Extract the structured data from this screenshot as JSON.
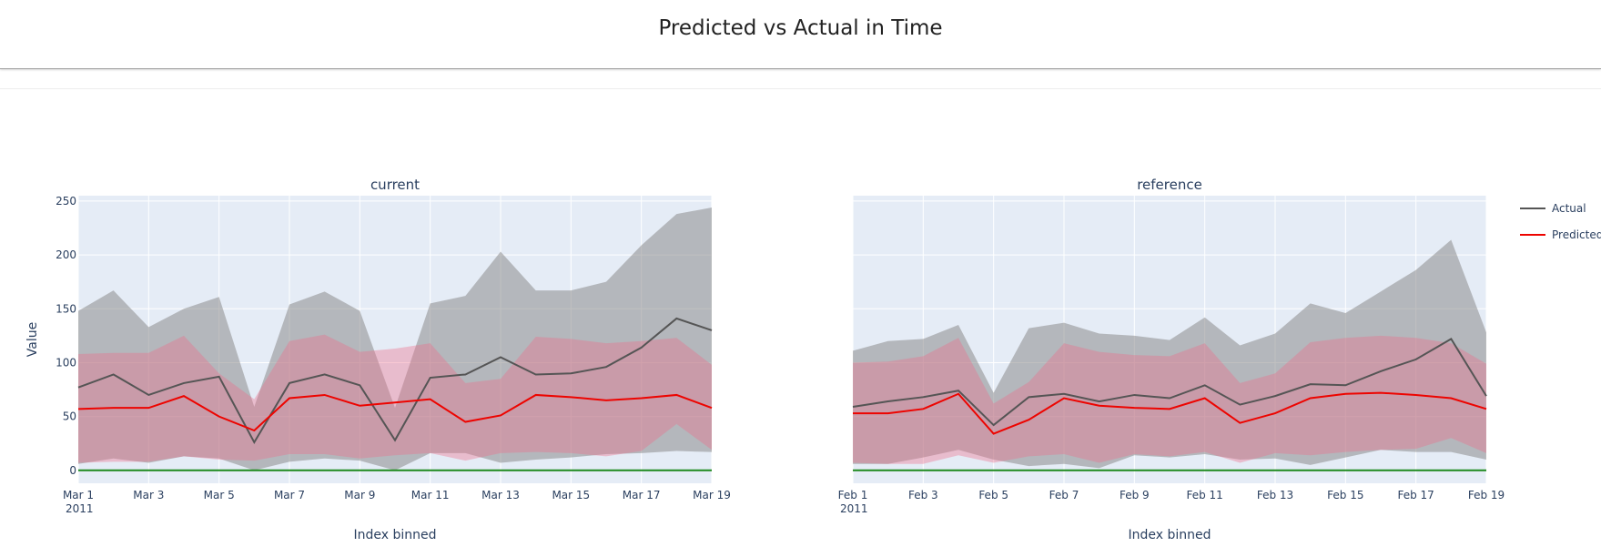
{
  "page": {
    "title": "Predicted vs Actual in Time"
  },
  "chart_data": {
    "type": "line",
    "ylabel": "Value",
    "ylim": [
      -12,
      255
    ],
    "yticks": [
      0,
      50,
      100,
      150,
      200,
      250
    ],
    "grid": true,
    "legend": {
      "placement": "top-right",
      "items": [
        {
          "name": "Actual",
          "color": "#555555"
        },
        {
          "name": "Predicted",
          "color": "#ed0400"
        }
      ]
    },
    "colors": {
      "actual": "#555555",
      "predicted": "#ed0400",
      "zero_line": "#1e8a1e",
      "actual_band": "rgba(140,140,140,0.55)",
      "predicted_band": "rgba(237,110,140,0.38)",
      "plot_bg": "#e5ecf6"
    },
    "panels": [
      {
        "subtitle": "current",
        "xlabel": "Index binned",
        "xlim": [
          1,
          19
        ],
        "xticks": [
          {
            "x": 1,
            "label": "Mar 1",
            "sub": "2011"
          },
          {
            "x": 3,
            "label": "Mar 3"
          },
          {
            "x": 5,
            "label": "Mar 5"
          },
          {
            "x": 7,
            "label": "Mar 7"
          },
          {
            "x": 9,
            "label": "Mar 9"
          },
          {
            "x": 11,
            "label": "Mar 11"
          },
          {
            "x": 13,
            "label": "Mar 13"
          },
          {
            "x": 15,
            "label": "Mar 15"
          },
          {
            "x": 17,
            "label": "Mar 17"
          },
          {
            "x": 19,
            "label": "Mar 19"
          }
        ],
        "x": [
          1,
          2,
          3,
          4,
          5,
          6,
          7,
          8,
          9,
          10,
          11,
          12,
          13,
          14,
          15,
          16,
          17,
          18,
          19
        ],
        "series": [
          {
            "name": "Actual",
            "values": [
              77,
              89,
              70,
              81,
              87,
              26,
              81,
              89,
              79,
              28,
              86,
              89,
              105,
              89,
              90,
              96,
              114,
              141,
              130
            ]
          },
          {
            "name": "Predicted",
            "values": [
              57,
              58,
              58,
              69,
              50,
              37,
              67,
              70,
              60,
              63,
              66,
              45,
              51,
              70,
              68,
              65,
              67,
              70,
              58
            ]
          }
        ],
        "actual_band": {
          "upper": [
            148,
            167,
            133,
            150,
            161,
            59,
            154,
            166,
            148,
            58,
            155,
            162,
            203,
            167,
            167,
            175,
            209,
            238,
            244
          ],
          "lower": [
            6,
            11,
            7,
            13,
            11,
            0,
            8,
            11,
            9,
            0,
            16,
            16,
            7,
            10,
            12,
            15,
            16,
            18,
            17
          ]
        },
        "predicted_band": {
          "upper": [
            108,
            109,
            109,
            125,
            90,
            66,
            120,
            126,
            110,
            113,
            118,
            81,
            85,
            124,
            122,
            118,
            120,
            123,
            98
          ],
          "lower": [
            7,
            8,
            8,
            13,
            10,
            9,
            15,
            15,
            11,
            14,
            16,
            9,
            16,
            17,
            16,
            13,
            18,
            43,
            19
          ]
        }
      },
      {
        "subtitle": "reference",
        "xlabel": "Index binned",
        "xlim": [
          1,
          19
        ],
        "xticks": [
          {
            "x": 1,
            "label": "Feb 1",
            "sub": "2011"
          },
          {
            "x": 3,
            "label": "Feb 3"
          },
          {
            "x": 5,
            "label": "Feb 5"
          },
          {
            "x": 7,
            "label": "Feb 7"
          },
          {
            "x": 9,
            "label": "Feb 9"
          },
          {
            "x": 11,
            "label": "Feb 11"
          },
          {
            "x": 13,
            "label": "Feb 13"
          },
          {
            "x": 15,
            "label": "Feb 15"
          },
          {
            "x": 17,
            "label": "Feb 17"
          },
          {
            "x": 19,
            "label": "Feb 19"
          }
        ],
        "x": [
          1,
          2,
          3,
          4,
          5,
          6,
          7,
          8,
          9,
          10,
          11,
          12,
          13,
          14,
          15,
          16,
          17,
          18,
          19
        ],
        "series": [
          {
            "name": "Actual",
            "values": [
              59,
              64,
              68,
              74,
              42,
              68,
              71,
              64,
              70,
              67,
              79,
              61,
              69,
              80,
              79,
              92,
              103,
              122,
              69
            ]
          },
          {
            "name": "Predicted",
            "values": [
              53,
              53,
              57,
              71,
              34,
              47,
              67,
              60,
              58,
              57,
              67,
              44,
              53,
              67,
              71,
              72,
              70,
              67,
              57
            ]
          }
        ],
        "actual_band": {
          "upper": [
            111,
            120,
            122,
            135,
            72,
            132,
            137,
            127,
            125,
            121,
            142,
            116,
            127,
            155,
            146,
            166,
            186,
            214,
            128
          ],
          "lower": [
            6,
            6,
            12,
            19,
            10,
            4,
            6,
            2,
            14,
            12,
            15,
            10,
            11,
            5,
            12,
            19,
            17,
            17,
            10
          ]
        },
        "predicted_band": {
          "upper": [
            100,
            101,
            106,
            123,
            62,
            82,
            118,
            110,
            107,
            106,
            118,
            81,
            90,
            119,
            123,
            125,
            123,
            118,
            99
          ],
          "lower": [
            7,
            6,
            6,
            14,
            7,
            13,
            15,
            7,
            15,
            13,
            17,
            7,
            16,
            14,
            17,
            19,
            20,
            30,
            16
          ]
        }
      }
    ]
  }
}
